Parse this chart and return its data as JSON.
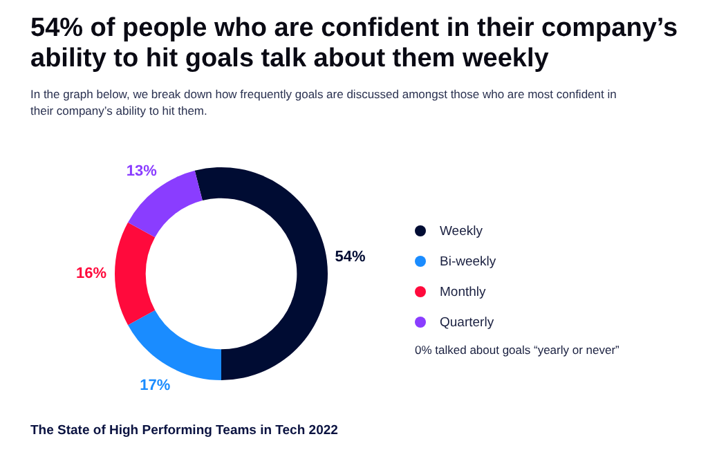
{
  "chart_data": {
    "type": "donut",
    "title": "54% of people who are confident in their company’s ability to hit goals talk about them weekly",
    "subtitle": "In the graph below, we break down how frequently goals are discussed amongst those who are most confident in their company’s ability to hit them.",
    "categories": [
      "Weekly",
      "Bi-weekly",
      "Monthly",
      "Quarterly"
    ],
    "values": [
      54,
      17,
      16,
      13
    ],
    "value_labels": [
      "54%",
      "17%",
      "16%",
      "13%"
    ],
    "colors": [
      "#000c33",
      "#1a8cff",
      "#ff0a3c",
      "#8a3dff"
    ],
    "legend": "right",
    "annotations": [
      "0% talked about goals “yearly or never”",
      "The State of High Performing Teams in Tech 2022"
    ]
  }
}
